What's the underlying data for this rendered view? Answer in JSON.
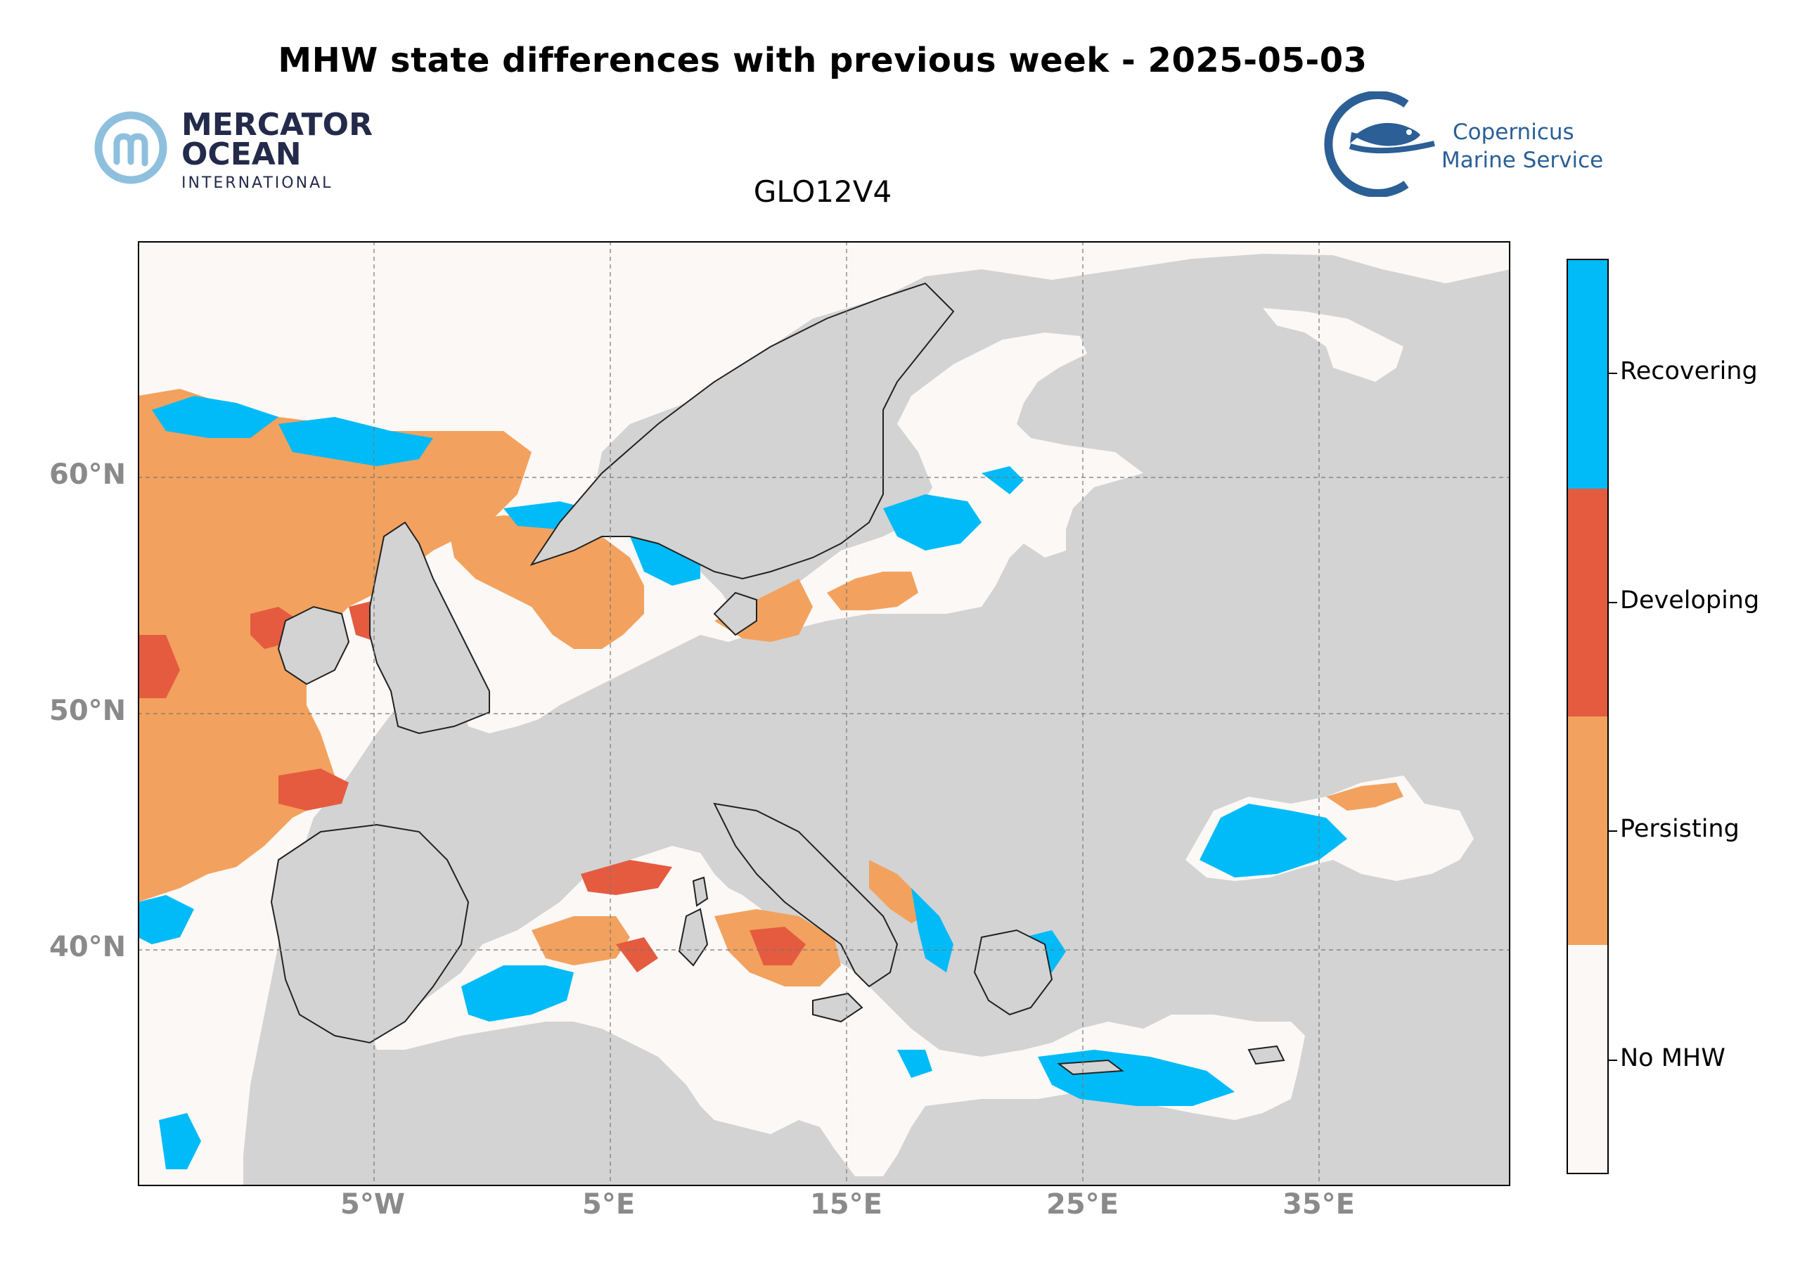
{
  "title": "MHW state differences with previous week - 2025-05-03",
  "subtitle": "GLO12V4",
  "logos": {
    "mercator_line1": "MERCATOR",
    "mercator_line2": "OCEAN",
    "mercator_line3": "INTERNATIONAL",
    "copernicus_line1": "Copernicus",
    "copernicus_line2": "Marine Service"
  },
  "axes": {
    "lat_labels": [
      "60°N",
      "50°N",
      "40°N"
    ],
    "lon_labels": [
      "5°W",
      "5°E",
      "15°E",
      "25°E",
      "35°E"
    ]
  },
  "legend": {
    "items": [
      {
        "label": "Recovering",
        "color": "#00bbf7"
      },
      {
        "label": "Developing",
        "color": "#e55b40"
      },
      {
        "label": "Persisting",
        "color": "#f2a25e"
      },
      {
        "label": "No MHW",
        "color": "#fcf8f6"
      }
    ]
  },
  "colors": {
    "land": "#d3d3d3",
    "ocean": "#fcf8f6",
    "recovering": "#00bbf7",
    "developing": "#e55b40",
    "persisting": "#f2a25e",
    "grid": "#777777",
    "axis_label": "#8a8a8a"
  }
}
